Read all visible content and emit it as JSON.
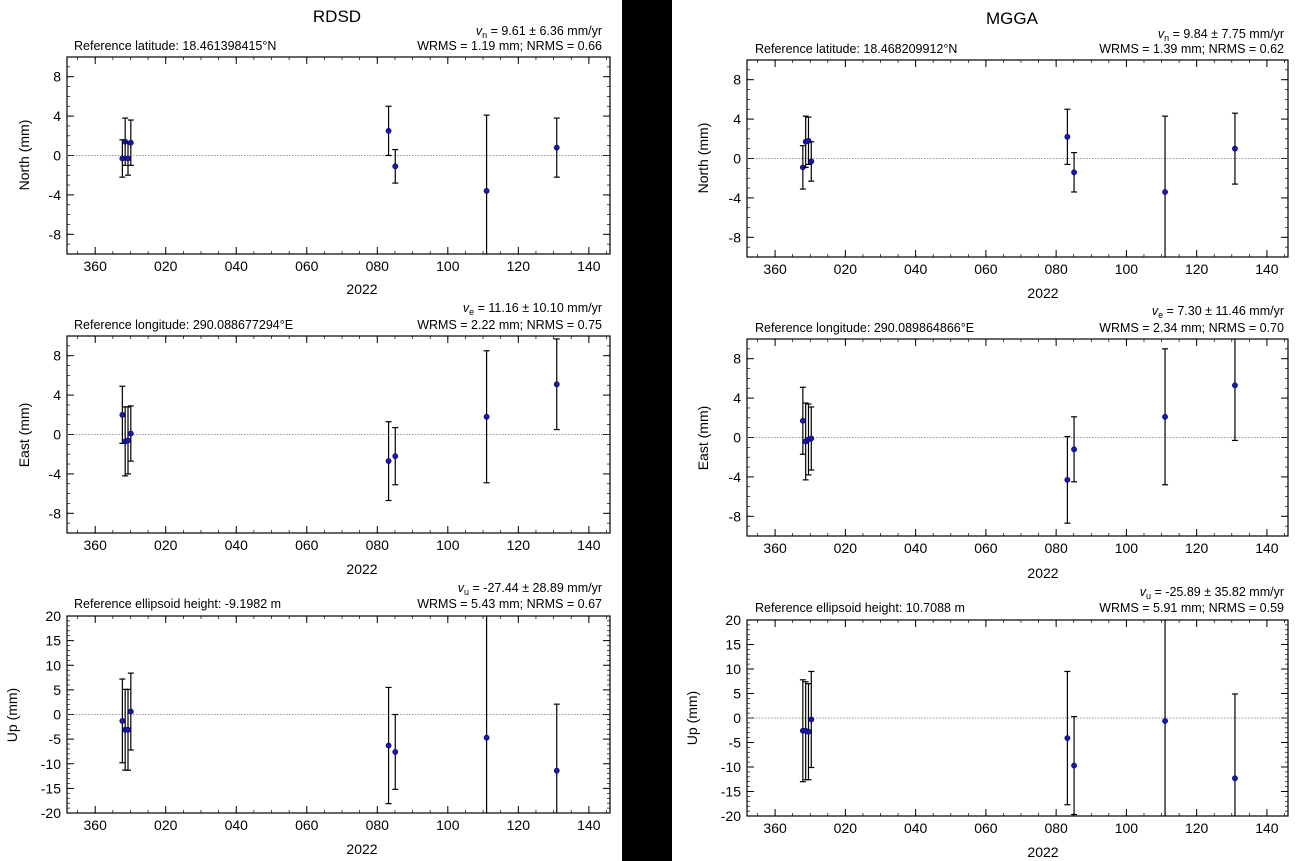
{
  "colors": {
    "point": "#1a1aa6",
    "point_stroke": "#000066",
    "errorbar": "#000000",
    "zero_line": "#777777",
    "divider": "#000000"
  },
  "year_label": "2022",
  "x_ticks": [
    "360",
    "020",
    "040",
    "060",
    "080",
    "100",
    "120",
    "140"
  ],
  "stations": [
    {
      "name": "RDSD",
      "panels": [
        {
          "component": "north",
          "ylabel": "North (mm)",
          "reference": "Reference latitude: 18.461398415°N",
          "velocity": {
            "symbol": "v",
            "subscript": "n",
            "text": " = 9.61 ± 6.36 mm/yr"
          },
          "wrms_line": "WRMS = 1.19 mm; NRMS = 0.66",
          "chart_data": {
            "type": "scatter",
            "error_bars": true,
            "x_days": [
              367.7,
              368.5,
              369.3,
              370.1,
              83.2,
              85.1,
              111.0,
              130.9
            ],
            "y": [
              -0.3,
              1.4,
              -0.3,
              1.3,
              2.5,
              -1.1,
              -3.6,
              0.8
            ],
            "err": [
              1.9,
              2.4,
              1.7,
              2.3,
              2.5,
              1.7,
              7.7,
              3.0
            ],
            "ylim": [
              -10,
              10
            ],
            "yticks": [
              "-8",
              "-4",
              "0",
              "4",
              "8"
            ],
            "ytick_values": [
              -8,
              -4,
              0,
              4,
              8
            ],
            "xlim": [
              352,
              146
            ],
            "grid": false
          }
        },
        {
          "component": "east",
          "ylabel": "East (mm)",
          "reference": "Reference longitude: 290.088677294°E",
          "velocity": {
            "symbol": "v",
            "subscript": "e",
            "text": " = 11.16 ± 10.10 mm/yr"
          },
          "wrms_line": "WRMS = 2.22 mm; NRMS = 0.75",
          "chart_data": {
            "type": "scatter",
            "error_bars": true,
            "x_days": [
              367.7,
              368.5,
              369.3,
              370.1,
              83.2,
              85.1,
              111.0,
              130.9
            ],
            "y": [
              2.0,
              -0.7,
              -0.6,
              0.1,
              -2.7,
              -2.2,
              1.8,
              5.1
            ],
            "err": [
              2.9,
              3.5,
              3.4,
              2.8,
              4.0,
              2.9,
              6.7,
              4.6
            ],
            "ylim": [
              -10,
              10
            ],
            "yticks": [
              "-8",
              "-4",
              "0",
              "4",
              "8"
            ],
            "ytick_values": [
              -8,
              -4,
              0,
              4,
              8
            ],
            "xlim": [
              352,
              146
            ],
            "grid": false
          }
        },
        {
          "component": "up",
          "ylabel": "Up (mm)",
          "reference": "Reference ellipsoid height: -9.1982 m",
          "velocity": {
            "symbol": "v",
            "subscript": "u",
            "text": " = -27.44 ± 28.89 mm/yr"
          },
          "wrms_line": "WRMS = 5.43 mm; NRMS = 0.67",
          "chart_data": {
            "type": "scatter",
            "error_bars": true,
            "x_days": [
              367.7,
              368.5,
              369.3,
              370.1,
              83.2,
              85.1,
              111.0,
              130.9
            ],
            "y": [
              -1.3,
              -3.1,
              -3.1,
              0.6,
              -6.3,
              -7.6,
              -4.7,
              -11.4
            ],
            "err": [
              8.5,
              8.2,
              8.2,
              7.8,
              11.8,
              7.6,
              25.0,
              13.5
            ],
            "ylim": [
              -20,
              20
            ],
            "yticks": [
              "20",
              "15",
              "10",
              "5",
              "0",
              "-5",
              "-10",
              "-15",
              "-20"
            ],
            "ytick_values": [
              20,
              15,
              10,
              5,
              0,
              -5,
              -10,
              -15,
              -20
            ],
            "xlim": [
              352,
              146
            ],
            "grid": false
          }
        }
      ]
    },
    {
      "name": "MGGA",
      "panels": [
        {
          "component": "north",
          "ylabel": "North (mm)",
          "reference": "Reference latitude: 18.468209912°N",
          "velocity": {
            "symbol": "v",
            "subscript": "n",
            "text": " = 9.84 ± 7.75 mm/yr"
          },
          "wrms_line": "WRMS = 1.39 mm; NRMS = 0.62",
          "chart_data": {
            "type": "scatter",
            "error_bars": true,
            "x_days": [
              367.9,
              368.7,
              369.5,
              370.3,
              83.2,
              85.1,
              111.0,
              130.9
            ],
            "y": [
              -0.9,
              1.7,
              1.8,
              -0.3,
              2.2,
              -1.4,
              -3.4,
              1.0
            ],
            "err": [
              2.2,
              2.6,
              2.4,
              2.0,
              2.8,
              2.0,
              7.7,
              3.6
            ],
            "ylim": [
              -10,
              10
            ],
            "yticks": [
              "-8",
              "-4",
              "0",
              "4",
              "8"
            ],
            "ytick_values": [
              -8,
              -4,
              0,
              4,
              8
            ],
            "xlim": [
              352,
              146
            ],
            "grid": false
          }
        },
        {
          "component": "east",
          "ylabel": "East (mm)",
          "reference": "Reference longitude: 290.089864866°E",
          "velocity": {
            "symbol": "v",
            "subscript": "e",
            "text": " = 7.30 ± 11.46 mm/yr"
          },
          "wrms_line": "WRMS = 2.34 mm; NRMS = 0.70",
          "chart_data": {
            "type": "scatter",
            "error_bars": true,
            "x_days": [
              367.9,
              368.7,
              369.5,
              370.3,
              83.2,
              85.1,
              111.0,
              130.9
            ],
            "y": [
              1.7,
              -0.4,
              -0.2,
              -0.1,
              -4.3,
              -1.2,
              2.1,
              5.3
            ],
            "err": [
              3.4,
              3.9,
              3.6,
              3.2,
              4.4,
              3.3,
              6.9,
              5.6
            ],
            "ylim": [
              -10,
              10
            ],
            "yticks": [
              "-8",
              "-4",
              "0",
              "4",
              "8"
            ],
            "ytick_values": [
              -8,
              -4,
              0,
              4,
              8
            ],
            "xlim": [
              352,
              146
            ],
            "grid": false
          }
        },
        {
          "component": "up",
          "ylabel": "Up (mm)",
          "reference": "Reference ellipsoid height: 10.7088 m",
          "velocity": {
            "symbol": "v",
            "subscript": "u",
            "text": " = -25.89 ± 35.82 mm/yr"
          },
          "wrms_line": "WRMS = 5.91 mm; NRMS = 0.59",
          "chart_data": {
            "type": "scatter",
            "error_bars": true,
            "x_days": [
              367.9,
              368.7,
              369.5,
              370.3,
              83.2,
              85.1,
              111.0,
              130.9
            ],
            "y": [
              -2.6,
              -2.6,
              -2.8,
              -0.3,
              -4.1,
              -9.7,
              -0.6,
              -12.3
            ],
            "err": [
              10.4,
              10.0,
              9.8,
              9.8,
              13.6,
              10.0,
              25.0,
              17.2
            ],
            "ylim": [
              -20,
              20
            ],
            "yticks": [
              "20",
              "15",
              "10",
              "5",
              "0",
              "-5",
              "-10",
              "-15",
              "-20"
            ],
            "ytick_values": [
              20,
              15,
              10,
              5,
              0,
              -5,
              -10,
              -15,
              -20
            ],
            "xlim": [
              352,
              146
            ],
            "grid": false
          }
        }
      ]
    }
  ]
}
